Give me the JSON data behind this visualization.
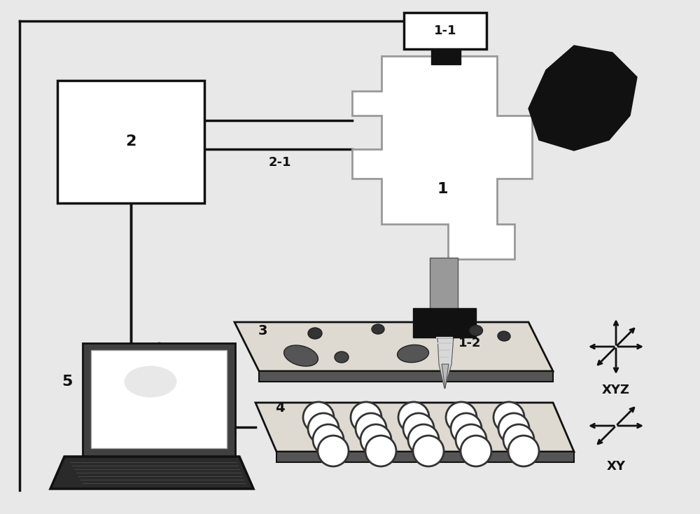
{
  "bg_color": "#e8e8e8",
  "label_1": "1",
  "label_1_1": "1-1",
  "label_1_2": "1-2",
  "label_2": "2",
  "label_2_1": "2-1",
  "label_3": "3",
  "label_4": "4",
  "label_5": "5",
  "label_xyz": "XYZ",
  "label_xy": "XY",
  "black": "#111111",
  "white": "#ffffff",
  "gray_light": "#d8d8d8",
  "gray_med": "#999999",
  "gray_dark": "#555555",
  "slide_color": "#dedad2",
  "slide_edge": "#888888"
}
